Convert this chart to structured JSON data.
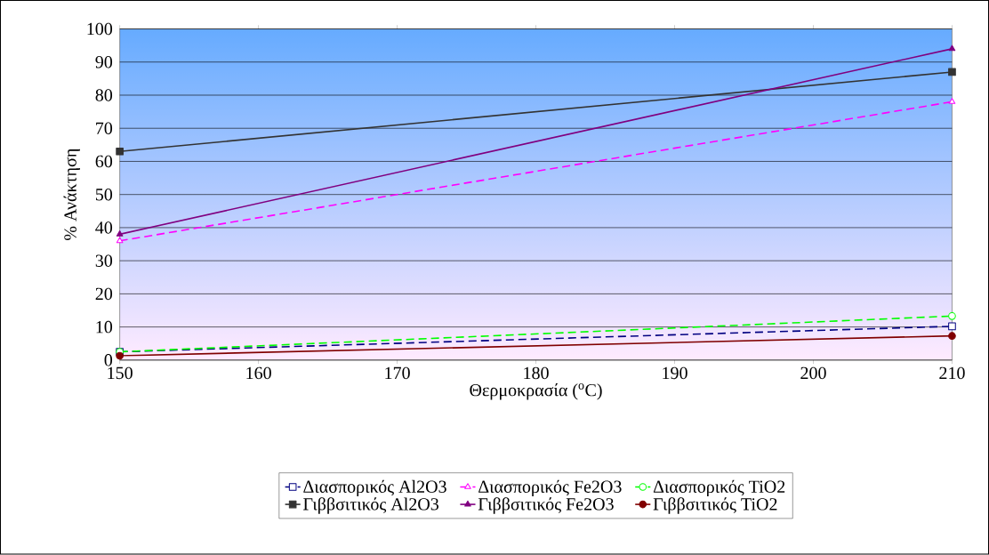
{
  "chart_data": {
    "type": "line",
    "xlabel": "Θερμοκρασία ($^{o}$C)",
    "ylabel": "% Ανάκτηση",
    "x": [
      150,
      210
    ],
    "xlim": [
      150,
      210
    ],
    "xticks": [
      150,
      160,
      170,
      180,
      190,
      200,
      210
    ],
    "ylim": [
      0,
      100
    ],
    "yticks": [
      0,
      10,
      20,
      30,
      40,
      50,
      60,
      70,
      80,
      90,
      100
    ],
    "grid": "y",
    "legend": "bottom",
    "series": [
      {
        "name": "Διασπορικός Al2O3",
        "color": "#000080",
        "values": [
          2.5,
          10.2
        ],
        "marker": "square",
        "line_style": "dashed"
      },
      {
        "name": "Διασπορικός Fe2O3",
        "color": "#ff00ff",
        "values": [
          36,
          78
        ],
        "marker": "triangle",
        "line_style": "dashed"
      },
      {
        "name": "Διασπορικός TiO2",
        "color": "#00ff00",
        "values": [
          2.5,
          13.3
        ],
        "marker": "circle",
        "line_style": "dashed"
      },
      {
        "name": "Γιββσιτικός Al2O3",
        "color": "#333333",
        "values": [
          63,
          87
        ],
        "marker": "square",
        "line_style": "solid"
      },
      {
        "name": "Γιββσιτικός Fe2O3",
        "color": "#800080",
        "values": [
          38,
          94
        ],
        "marker": "triangle",
        "line_style": "solid"
      },
      {
        "name": "Γιββσιτικός TiO2",
        "color": "#800000",
        "values": [
          1.3,
          7.3
        ],
        "marker": "circle",
        "line_style": "solid"
      }
    ]
  }
}
